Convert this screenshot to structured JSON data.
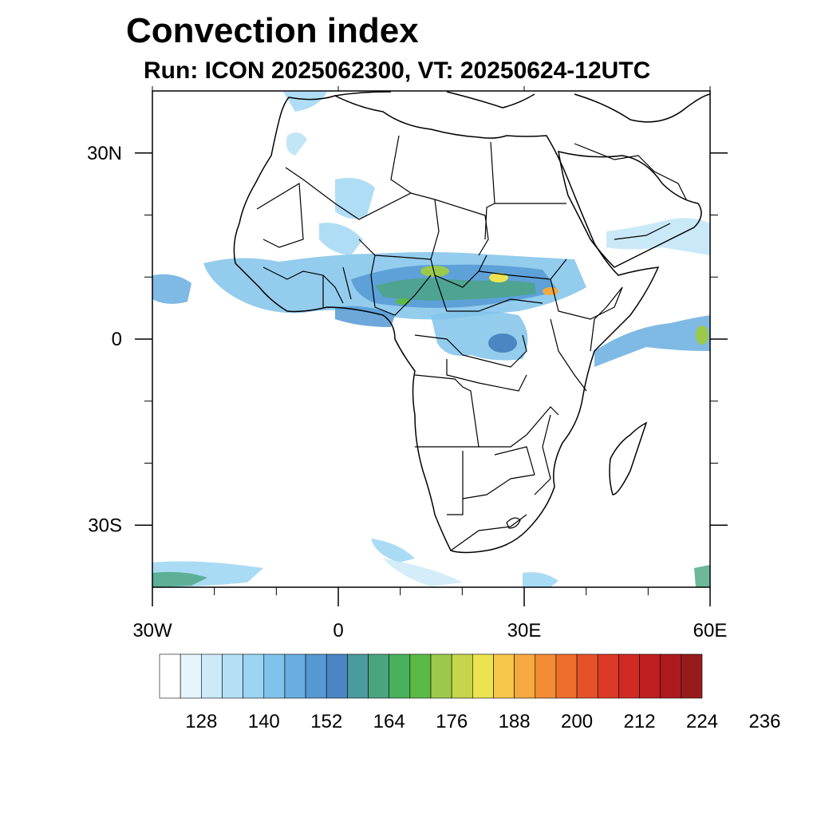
{
  "title": "Convection index",
  "subtitle": "Run: ICON 2025062300,  VT: 20250624-12UTC",
  "map": {
    "lon_range": [
      -30,
      60
    ],
    "lat_range": [
      -40,
      40
    ],
    "x_ticks": [
      {
        "lon": -30,
        "label": "30W"
      },
      {
        "lon": 0,
        "label": "0"
      },
      {
        "lon": 30,
        "label": "30E"
      },
      {
        "lon": 60,
        "label": "60E"
      }
    ],
    "y_ticks": [
      {
        "lat": 30,
        "label": "30N"
      },
      {
        "lat": 0,
        "label": "0"
      },
      {
        "lat": -30,
        "label": "30S"
      }
    ],
    "minor_lon_ticks": [
      -20,
      -10,
      10,
      20,
      40,
      50
    ],
    "minor_lat_ticks": [
      20,
      10,
      -10,
      -20
    ]
  },
  "colorbar": {
    "colors": [
      "#ffffff",
      "#e6f4fc",
      "#cceaf8",
      "#b4e0f5",
      "#9bd5f2",
      "#80c3ea",
      "#68aee1",
      "#5599d3",
      "#4a86c2",
      "#4b9a9e",
      "#4aa57f",
      "#49b15c",
      "#5bba46",
      "#9cc94a",
      "#c5d64d",
      "#ede351",
      "#f7c64a",
      "#f7a940",
      "#f38c35",
      "#ed6e2c",
      "#e55228",
      "#dc3a26",
      "#d02a24",
      "#c01f22",
      "#ac1a1f",
      "#961b1d"
    ],
    "labels": [
      "128",
      "140",
      "152",
      "164",
      "176",
      "188",
      "200",
      "212",
      "224",
      "236"
    ]
  }
}
